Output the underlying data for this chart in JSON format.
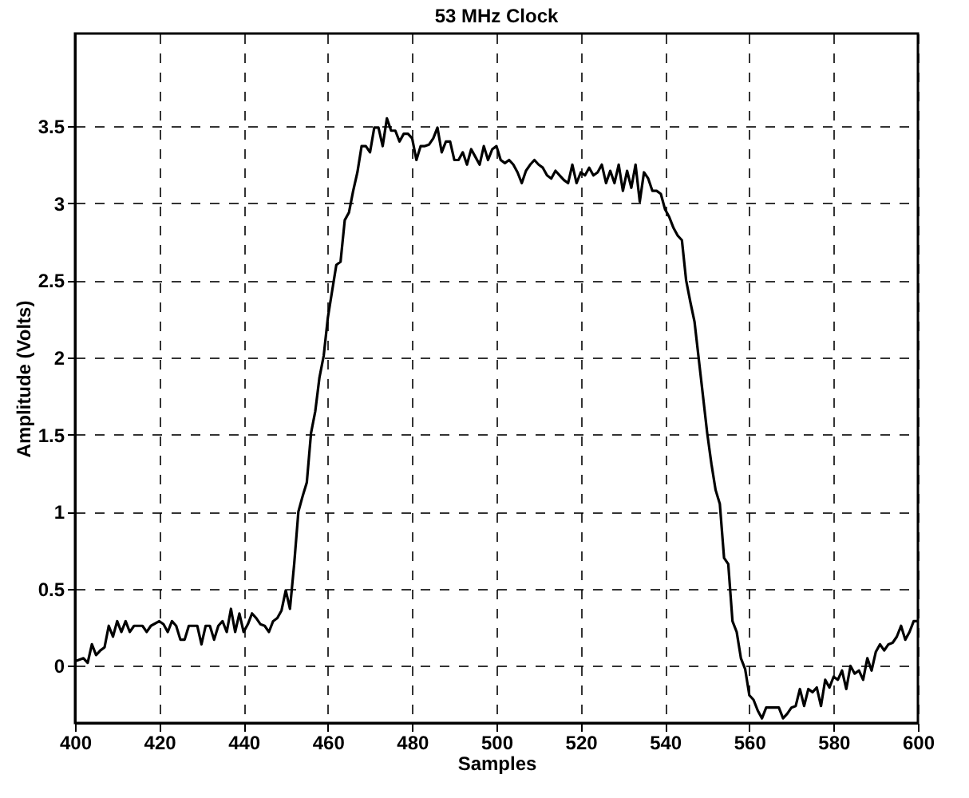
{
  "chart_data": {
    "type": "line",
    "title": "53 MHz Clock",
    "xlabel": "Samples",
    "ylabel": "Amplitude (Volts)",
    "x": [
      400,
      402,
      403,
      404,
      405,
      406,
      407,
      408,
      409,
      410,
      411,
      412,
      413,
      414,
      416,
      417,
      418,
      420,
      421,
      422,
      423,
      424,
      425,
      426,
      427,
      429,
      430,
      431,
      432,
      433,
      434,
      435,
      436,
      437,
      438,
      439,
      440,
      441,
      442,
      443,
      444,
      445,
      446,
      447,
      448,
      449,
      450,
      451,
      452,
      453,
      454,
      455,
      456,
      457,
      458,
      459,
      460,
      461,
      462,
      463,
      464,
      465,
      466,
      467,
      468,
      469,
      470,
      471,
      472,
      473,
      474,
      475,
      476,
      477,
      478,
      479,
      480,
      481,
      482,
      483,
      484,
      485,
      486,
      487,
      488,
      489,
      490,
      491,
      492,
      493,
      494,
      495,
      496,
      497,
      498,
      499,
      500,
      501,
      502,
      503,
      504,
      505,
      506,
      507,
      508,
      509,
      510,
      511,
      512,
      513,
      514,
      515,
      516,
      517,
      518,
      519,
      520,
      521,
      522,
      523,
      524,
      525,
      526,
      527,
      528,
      529,
      530,
      531,
      532,
      533,
      534,
      535,
      536,
      537,
      538,
      539,
      540,
      541,
      542,
      543,
      544,
      545,
      546,
      547,
      548,
      549,
      550,
      551,
      552,
      553,
      554,
      555,
      556,
      557,
      558,
      559,
      560,
      561,
      562,
      563,
      564,
      565,
      566,
      567,
      568,
      569,
      570,
      571,
      572,
      573,
      574,
      575,
      576,
      577,
      578,
      579,
      580,
      581,
      582,
      583,
      584,
      585,
      586,
      587,
      588,
      589,
      590,
      591,
      592,
      593,
      594,
      595,
      596,
      597,
      598,
      599,
      600
    ],
    "series": [
      {
        "color": "#000000",
        "values": [
          0.03,
          0.05,
          0.02,
          0.14,
          0.07,
          0.1,
          0.12,
          0.26,
          0.19,
          0.29,
          0.22,
          0.29,
          0.22,
          0.26,
          0.26,
          0.22,
          0.26,
          0.29,
          0.27,
          0.22,
          0.29,
          0.26,
          0.17,
          0.17,
          0.26,
          0.26,
          0.14,
          0.26,
          0.26,
          0.17,
          0.26,
          0.29,
          0.22,
          0.37,
          0.22,
          0.34,
          0.22,
          0.27,
          0.34,
          0.31,
          0.27,
          0.26,
          0.22,
          0.29,
          0.31,
          0.36,
          0.49,
          0.37,
          0.66,
          1.0,
          1.1,
          1.19,
          1.51,
          1.65,
          1.87,
          2.01,
          2.26,
          2.43,
          2.6,
          2.62,
          2.89,
          2.94,
          3.08,
          3.2,
          3.37,
          3.37,
          3.33,
          3.49,
          3.49,
          3.37,
          3.55,
          3.47,
          3.47,
          3.4,
          3.45,
          3.45,
          3.42,
          3.28,
          3.37,
          3.37,
          3.38,
          3.42,
          3.49,
          3.33,
          3.4,
          3.4,
          3.28,
          3.28,
          3.33,
          3.25,
          3.35,
          3.3,
          3.25,
          3.37,
          3.28,
          3.35,
          3.37,
          3.28,
          3.26,
          3.28,
          3.25,
          3.2,
          3.13,
          3.21,
          3.25,
          3.28,
          3.25,
          3.23,
          3.18,
          3.16,
          3.21,
          3.18,
          3.15,
          3.13,
          3.25,
          3.13,
          3.2,
          3.18,
          3.23,
          3.18,
          3.2,
          3.25,
          3.13,
          3.21,
          3.13,
          3.25,
          3.08,
          3.21,
          3.1,
          3.25,
          3.01,
          3.2,
          3.16,
          3.08,
          3.08,
          3.06,
          2.96,
          2.91,
          2.84,
          2.79,
          2.76,
          2.5,
          2.36,
          2.23,
          1.99,
          1.75,
          1.51,
          1.31,
          1.14,
          1.05,
          0.7,
          0.66,
          0.29,
          0.22,
          0.05,
          -0.02,
          -0.19,
          -0.22,
          -0.29,
          -0.34,
          -0.27,
          -0.27,
          -0.27,
          -0.27,
          -0.34,
          -0.31,
          -0.27,
          -0.26,
          -0.15,
          -0.26,
          -0.15,
          -0.17,
          -0.14,
          -0.26,
          -0.09,
          -0.14,
          -0.07,
          -0.09,
          -0.03,
          -0.15,
          0,
          -0.05,
          -0.03,
          -0.09,
          0.05,
          -0.03,
          0.09,
          0.14,
          0.1,
          0.14,
          0.15,
          0.19,
          0.26,
          0.17,
          0.22,
          0.29,
          0.29
        ]
      }
    ],
    "xlim": [
      400,
      600
    ],
    "xticks": [
      400,
      420,
      440,
      460,
      480,
      500,
      520,
      540,
      560,
      580,
      600
    ],
    "ylim": [
      -0.37,
      4.1
    ],
    "yticks": [
      0,
      0.5,
      1,
      1.5,
      2,
      2.5,
      3,
      3.5
    ],
    "grid": true,
    "line_style": "solid",
    "marker": "none"
  }
}
